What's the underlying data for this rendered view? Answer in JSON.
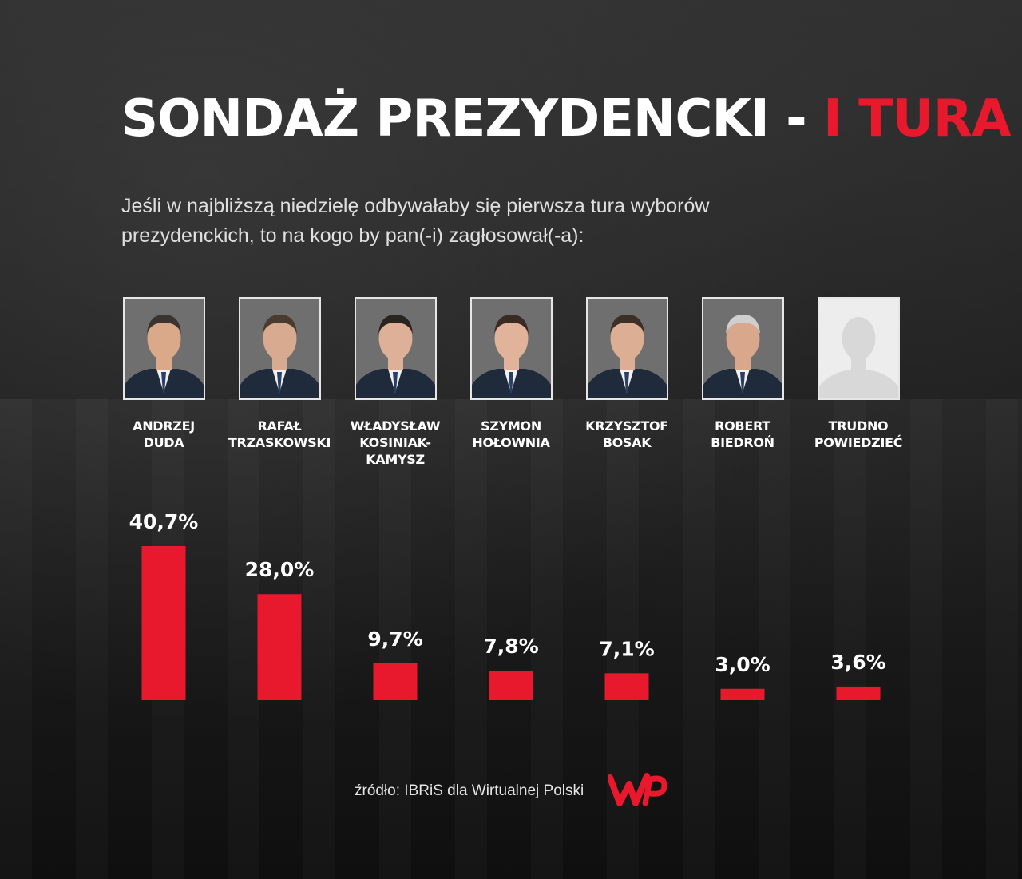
{
  "title": {
    "main": "SONDAŻ PREZYDENCKI - ",
    "accent": "I TURA"
  },
  "question": "Jeśli w najbliższą niedzielę odbywałaby się pierwsza tura wyborów prezydenckich, to na kogo by pan(-i) zagłosował(-a):",
  "candidates": [
    {
      "line1": "ANDRZEJ",
      "line2": "DUDA"
    },
    {
      "line1": "RAFAŁ",
      "line2": "TRZASKOWSKI"
    },
    {
      "line1": "WŁADYSŁAW",
      "line2": "KOSINIAK-KAMYSZ"
    },
    {
      "line1": "SZYMON",
      "line2": "HOŁOWNIA"
    },
    {
      "line1": "KRZYSZTOF",
      "line2": "BOSAK"
    },
    {
      "line1": "ROBERT",
      "line2": "BIEDROŃ"
    },
    {
      "line1": "TRUDNO",
      "line2": "POWIEDZIEĆ"
    }
  ],
  "chart_data": {
    "type": "bar",
    "categories": [
      "ANDRZEJ DUDA",
      "RAFAŁ TRZASKOWSKI",
      "WŁADYSŁAW KOSINIAK-KAMYSZ",
      "SZYMON HOŁOWNIA",
      "KRZYSZTOF BOSAK",
      "ROBERT BIEDROŃ",
      "TRUDNO POWIEDZIEĆ"
    ],
    "values": [
      40.7,
      28.0,
      9.7,
      7.8,
      7.1,
      3.0,
      3.6
    ],
    "labels": [
      "40,7%",
      "28,0%",
      "9,7%",
      "7,8%",
      "7,1%",
      "3,0%",
      "3,6%"
    ],
    "bar_color": "#e8192c",
    "grid": false
  },
  "source": "źródło: IBRiS dla Wirtualnej Polski",
  "logo": {
    "text": "WP",
    "color": "#e8192c"
  }
}
